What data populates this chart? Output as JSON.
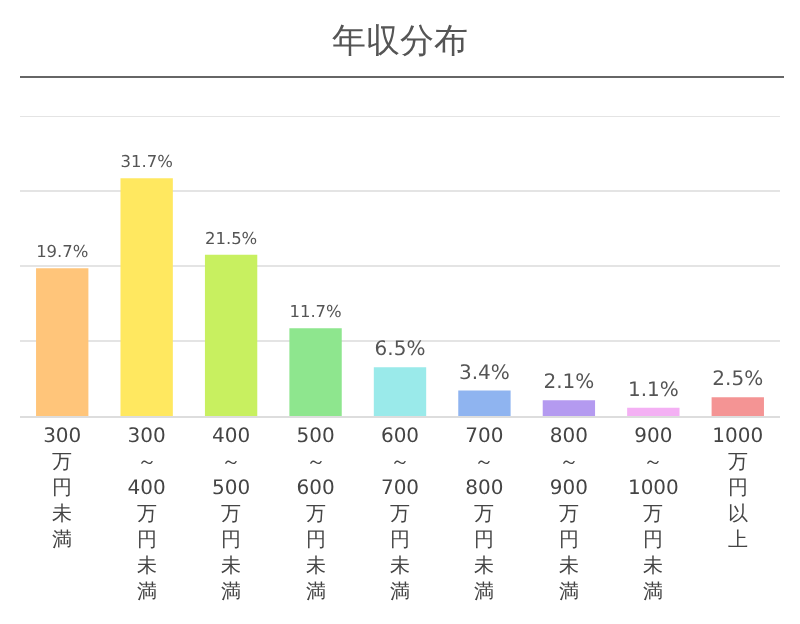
{
  "chart_data": {
    "type": "bar",
    "title": "年収分布",
    "categories": [
      "300\n万円未満",
      "300\n～\n400\n万円未満",
      "400\n～\n500\n万円未満",
      "500\n～\n600\n万円未満",
      "600\n～\n700\n万円未満",
      "700\n～\n800\n万円未満",
      "800\n～\n900\n万円未満",
      "900\n～\n1000\n万円未満",
      "1000\n万円以上"
    ],
    "values": [
      19.7,
      31.7,
      21.5,
      11.7,
      6.5,
      3.4,
      2.1,
      1.1,
      2.5
    ],
    "value_labels": [
      "19.7%",
      "31.7%",
      "21.5%",
      "11.7%",
      "6.5%",
      "3.4%",
      "2.1%",
      "1.1%",
      "2.5%"
    ],
    "colors": [
      "#ffc57a",
      "#ffe860",
      "#c8f060",
      "#8ee68e",
      "#9aeaea",
      "#8fb4f0",
      "#b49af0",
      "#f4b0f4",
      "#f49494"
    ],
    "ylim": [
      0,
      40
    ],
    "yticks": [
      {
        "value": 0,
        "label": null
      },
      {
        "value": 10,
        "label": null
      },
      {
        "value": 20,
        "label": null
      },
      {
        "value": 30,
        "label": null
      },
      {
        "value": 40,
        "label": null
      }
    ],
    "grid": "y",
    "tick_labels": "x"
  }
}
